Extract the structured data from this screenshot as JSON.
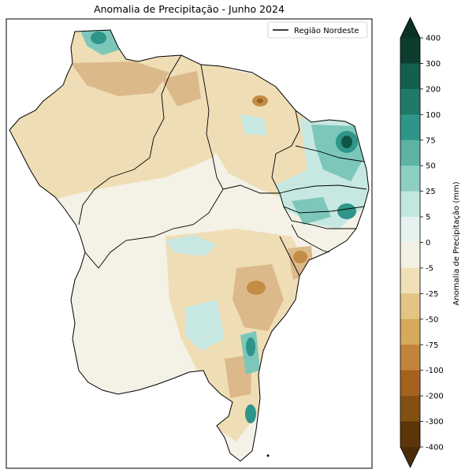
{
  "title": "Anomalia de Precipitação - Junho 2024",
  "legend": {
    "label": "Região Nordeste"
  },
  "colorbar": {
    "label": "Anomalia de Precipitação (mm)",
    "ticks": [
      "400",
      "300",
      "200",
      "100",
      "75",
      "50",
      "25",
      "5",
      "0",
      "-5",
      "-25",
      "-50",
      "-75",
      "-100",
      "-200",
      "-300",
      "-400"
    ],
    "colors": [
      "#0c3d2f",
      "#13604f",
      "#1f7a69",
      "#2f958a",
      "#5cb3a4",
      "#8dcfc2",
      "#c2e7e1",
      "#e5f2ef",
      "#f5f0e4",
      "#f0dfb7",
      "#e3c484",
      "#d6a95b",
      "#c1843a",
      "#a5621f",
      "#845011",
      "#5d3508"
    ],
    "triangle_top": "#0a3123",
    "triangle_bottom": "#4a2c08"
  },
  "colors": {
    "dry_light": "#efddb5",
    "dry_mid": "#dcb98a",
    "dry_strong": "#c38d45",
    "dry_extreme": "#9b6320",
    "near_zero": "#f4f1e6",
    "wet_light": "#c7e8e2",
    "wet_mid": "#7cc7b9",
    "wet_strong": "#2f958a",
    "wet_extreme": "#0f5546"
  }
}
